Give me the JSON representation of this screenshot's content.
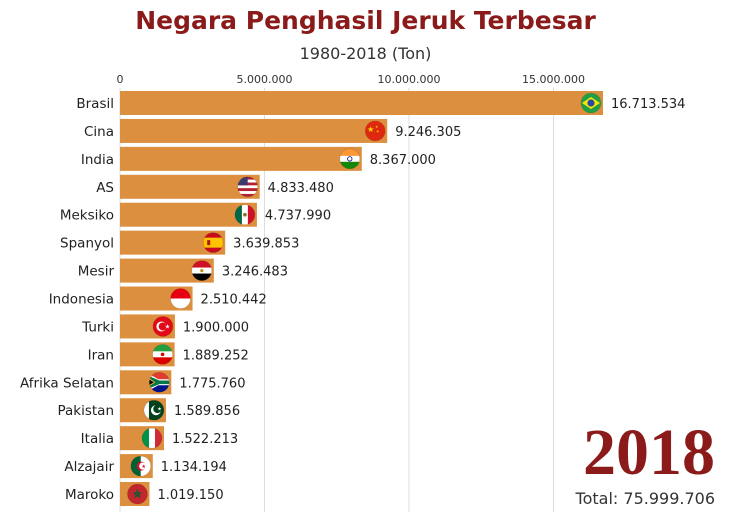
{
  "chart_data": {
    "type": "bar",
    "orientation": "horizontal",
    "title": "Negara Penghasil Jeruk Terbesar",
    "subtitle": "1980-2018 (Ton)",
    "year": "2018",
    "total_label": "Total:",
    "total_value": "75.999.706",
    "xlim": [
      0,
      16713534
    ],
    "xticks": [
      {
        "value": 0,
        "label": "0"
      },
      {
        "value": 5000000,
        "label": "5.000.000"
      },
      {
        "value": 10000000,
        "label": "10.000.000"
      },
      {
        "value": 15000000,
        "label": "15.000.000"
      }
    ],
    "bar_color": "#dc8f3e",
    "title_color": "#8b1a1a",
    "categories": [
      "Brasil",
      "Cina",
      "India",
      "AS",
      "Meksiko",
      "Spanyol",
      "Mesir",
      "Indonesia",
      "Turki",
      "Iran",
      "Afrika Selatan",
      "Pakistan",
      "Italia",
      "Alzajair",
      "Maroko"
    ],
    "values": [
      16713534,
      9246305,
      8367000,
      4833480,
      4737990,
      3639853,
      3246483,
      2510442,
      1900000,
      1889252,
      1775760,
      1589856,
      1522213,
      1134194,
      1019150
    ],
    "value_labels": [
      "16.713.534",
      "9.246.305",
      "8.367.000",
      "4.833.480",
      "4.737.990",
      "3.639.853",
      "3.246.483",
      "2.510.442",
      "1.900.000",
      "1.889.252",
      "1.775.760",
      "1.589.856",
      "1.522.213",
      "1.134.194",
      "1.019.150"
    ],
    "flags": [
      "brazil-flag",
      "china-flag",
      "india-flag",
      "usa-flag",
      "mexico-flag",
      "spain-flag",
      "egypt-flag",
      "indonesia-flag",
      "turkey-flag",
      "iran-flag",
      "south-africa-flag",
      "pakistan-flag",
      "italy-flag",
      "algeria-flag",
      "morocco-flag"
    ]
  }
}
